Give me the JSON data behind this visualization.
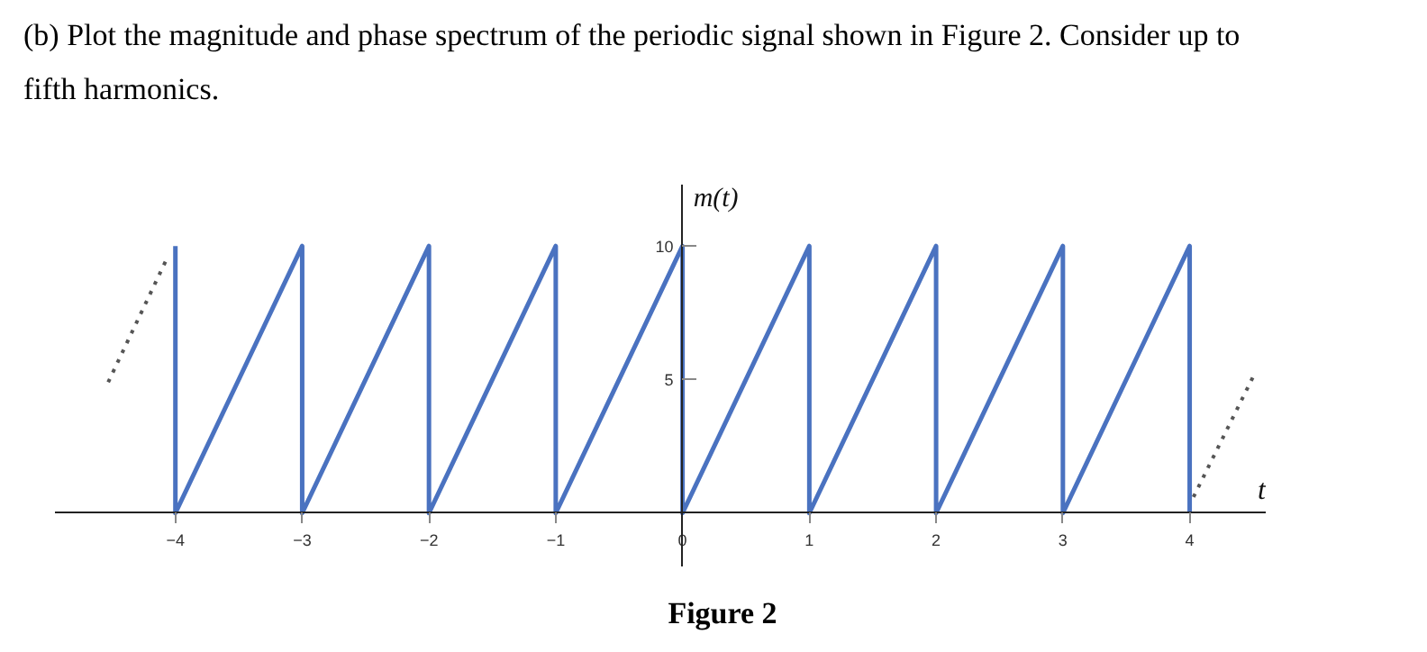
{
  "chart_data": {
    "type": "line",
    "title": "(b) Plot the magnitude and phase spectrum of the periodic signal shown in Figure 2. Consider up to fifth harmonics.",
    "xlabel": "t",
    "ylabel": "m(t)",
    "annotations": [
      "Figure 2"
    ],
    "xlim": [
      -4.95,
      4.6
    ],
    "ylim": [
      -2,
      12.3
    ],
    "xticks": [
      -4,
      -3,
      -2,
      -1,
      0,
      1,
      2,
      3,
      4
    ],
    "yticks": [
      5,
      10
    ],
    "grid": false,
    "marker": "none",
    "series": [
      {
        "color": "#4a72c0",
        "line_style": "solid",
        "x": [
          -4,
          -4,
          -3,
          -3,
          -2,
          -2,
          -1,
          -1,
          0,
          0,
          1,
          1,
          2,
          2,
          3,
          3,
          4,
          4
        ],
        "values": [
          10,
          0,
          10,
          0,
          10,
          0,
          10,
          0,
          10,
          0,
          10,
          0,
          10,
          0,
          10,
          0,
          10,
          0
        ]
      },
      {
        "color": "#555555",
        "line_style": "dotted",
        "x": [
          -4.53,
          -4.06
        ],
        "values": [
          4.9,
          9.6
        ]
      },
      {
        "color": "#555555",
        "line_style": "dotted",
        "x": [
          4.03,
          4.5
        ],
        "values": [
          0.6,
          5.1
        ]
      }
    ]
  }
}
